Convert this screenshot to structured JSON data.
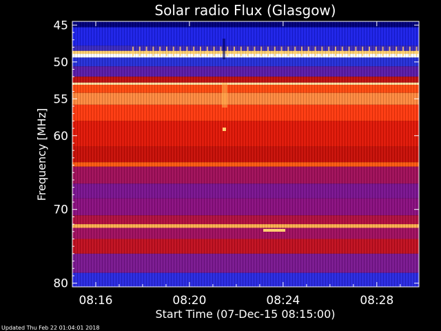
{
  "chart_data": {
    "type": "heatmap",
    "title": "Solar radio Flux (Glasgow)",
    "ylabel": "Frequency [MHz]",
    "xlabel": "Start Time (07-Dec-15 08:15:00)",
    "footer": "Updated Thu Feb 22 01:04:01 2018",
    "x_ticks": [
      "08:16",
      "08:20",
      "08:24",
      "08:28"
    ],
    "y_ticks": [
      "45",
      "50",
      "55",
      "60",
      "70",
      "80"
    ],
    "y_tick_values": [
      45,
      50,
      55,
      60,
      70,
      80
    ],
    "x_tick_minutes": [
      16,
      20,
      24,
      28
    ],
    "x_range_minutes": [
      15.0,
      29.8
    ],
    "ylim": [
      44.5,
      80.5
    ],
    "y_scale": "frequency axis, increasing downward",
    "colorscale": [
      "#000066",
      "#1a1aff",
      "#6a1a9a",
      "#c00000",
      "#ff2000",
      "#ff7a10",
      "#ffd070",
      "#ffffff"
    ],
    "bands": [
      {
        "from": 44.5,
        "to": 45.3,
        "color": "#00007a"
      },
      {
        "from": 45.3,
        "to": 47.8,
        "color": "#1d22e8"
      },
      {
        "from": 47.8,
        "to": 48.5,
        "color": "#3a2ac0"
      },
      {
        "from": 48.5,
        "to": 48.9,
        "color": "#ffd070"
      },
      {
        "from": 48.9,
        "to": 49.4,
        "color": "#ffffff"
      },
      {
        "from": 49.4,
        "to": 50.6,
        "color": "#2630d8"
      },
      {
        "from": 50.6,
        "to": 52.0,
        "color": "#5a1ca8"
      },
      {
        "from": 52.0,
        "to": 52.8,
        "color": "#c01010"
      },
      {
        "from": 52.8,
        "to": 53.1,
        "color": "#ffe0a0"
      },
      {
        "from": 53.1,
        "to": 54.2,
        "color": "#ff4a10"
      },
      {
        "from": 54.2,
        "to": 55.8,
        "color": "#ff8a40"
      },
      {
        "from": 55.8,
        "to": 58.0,
        "color": "#ff3a10"
      },
      {
        "from": 58.0,
        "to": 61.5,
        "color": "#e01808"
      },
      {
        "from": 61.5,
        "to": 63.6,
        "color": "#c81008"
      },
      {
        "from": 63.6,
        "to": 64.2,
        "color": "#ff5a10"
      },
      {
        "from": 64.2,
        "to": 66.5,
        "color": "#a0105a"
      },
      {
        "from": 66.5,
        "to": 68.5,
        "color": "#7a1490"
      },
      {
        "from": 68.5,
        "to": 70.8,
        "color": "#8a1080"
      },
      {
        "from": 70.8,
        "to": 72.0,
        "color": "#b01040"
      },
      {
        "from": 72.0,
        "to": 72.5,
        "color": "#ffb050"
      },
      {
        "from": 72.5,
        "to": 74.0,
        "color": "#a01060"
      },
      {
        "from": 74.0,
        "to": 76.0,
        "color": "#c01020"
      },
      {
        "from": 76.0,
        "to": 78.6,
        "color": "#7a1890"
      },
      {
        "from": 78.6,
        "to": 80.5,
        "color": "#2a2ae0"
      }
    ]
  }
}
